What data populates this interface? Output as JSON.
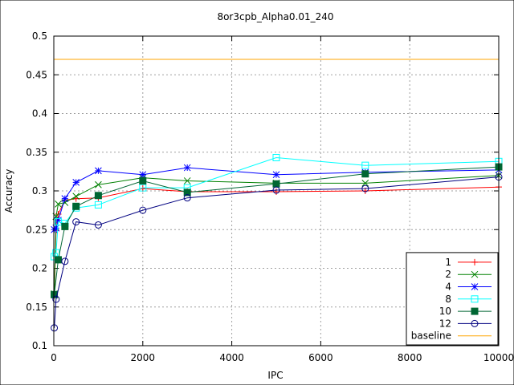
{
  "chart_data": {
    "type": "line",
    "title": "8or3cpb_Alpha0.01_240",
    "xlabel": "IPC",
    "ylabel": "Accuracy",
    "xlim": [
      0,
      10000
    ],
    "ylim": [
      0.1,
      0.5
    ],
    "xticks": [
      0,
      2000,
      4000,
      6000,
      8000,
      10000
    ],
    "yticks": [
      0.1,
      0.15,
      0.2,
      0.25,
      0.3,
      0.35,
      0.4,
      0.45,
      0.5
    ],
    "xtick_labels": [
      "0",
      "2000",
      "4000",
      "6000",
      "8000",
      "10000"
    ],
    "ytick_labels": [
      "0.1",
      "0.15",
      "0.2",
      "0.25",
      "0.3",
      "0.35",
      "0.4",
      "0.45",
      "0.5"
    ],
    "grid": true,
    "legend_position": "bottom-right",
    "series": [
      {
        "name": "1",
        "color": "#ff0000",
        "marker": "plus",
        "x": [
          10,
          50,
          100,
          250,
          500,
          1000,
          2000,
          3000,
          5000,
          7000,
          10000
        ],
        "y": [
          0.165,
          0.249,
          0.27,
          0.288,
          0.29,
          0.291,
          0.303,
          0.299,
          0.299,
          0.3,
          0.305
        ]
      },
      {
        "name": "2",
        "color": "#008000",
        "marker": "x",
        "x": [
          10,
          50,
          100,
          250,
          500,
          1000,
          2000,
          3000,
          5000,
          7000,
          10000
        ],
        "y": [
          0.167,
          0.267,
          0.283,
          0.285,
          0.293,
          0.308,
          0.317,
          0.313,
          0.31,
          0.31,
          0.32
        ]
      },
      {
        "name": "4",
        "color": "#0000ff",
        "marker": "star",
        "x": [
          10,
          50,
          100,
          250,
          500,
          1000,
          2000,
          3000,
          5000,
          7000,
          10000
        ],
        "y": [
          0.25,
          0.252,
          0.262,
          0.29,
          0.311,
          0.326,
          0.321,
          0.33,
          0.321,
          0.324,
          0.327
        ]
      },
      {
        "name": "8",
        "color": "#00ffff",
        "marker": "square",
        "x": [
          10,
          50,
          100,
          250,
          500,
          1000,
          2000,
          3000,
          5000,
          7000,
          10000
        ],
        "y": [
          0.215,
          0.22,
          0.26,
          0.258,
          0.278,
          0.282,
          0.304,
          0.304,
          0.343,
          0.333,
          0.338
        ]
      },
      {
        "name": "10",
        "color": "#006633",
        "marker": "filled-square",
        "x": [
          10,
          100,
          250,
          500,
          1000,
          2000,
          3000,
          5000,
          7000,
          10000
        ],
        "y": [
          0.166,
          0.211,
          0.254,
          0.28,
          0.294,
          0.313,
          0.298,
          0.309,
          0.322,
          0.331
        ]
      },
      {
        "name": "12",
        "color": "#000080",
        "marker": "circle",
        "x": [
          10,
          50,
          250,
          500,
          1000,
          2000,
          3000,
          5000,
          7000,
          10000
        ],
        "y": [
          0.123,
          0.16,
          0.209,
          0.26,
          0.256,
          0.275,
          0.291,
          0.301,
          0.303,
          0.318
        ]
      },
      {
        "name": "baseline",
        "color": "#ffa500",
        "marker": "none",
        "x": [
          0,
          10000
        ],
        "y": [
          0.47,
          0.47
        ]
      }
    ]
  }
}
